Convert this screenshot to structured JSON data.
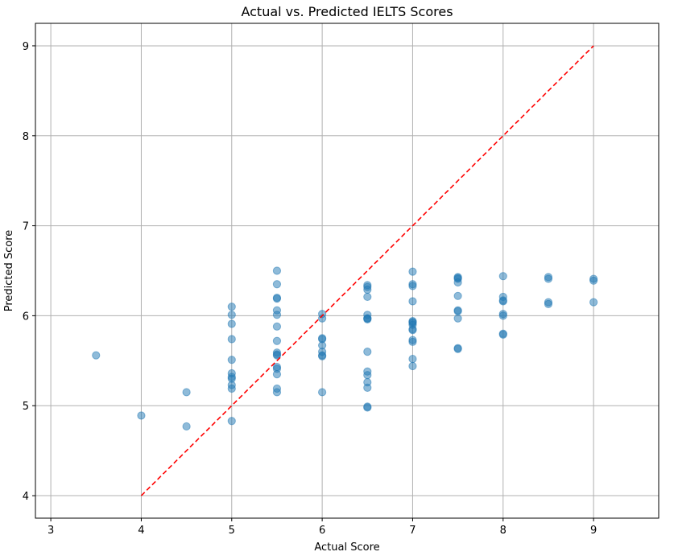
{
  "chart_data": {
    "type": "scatter",
    "title": "Actual vs. Predicted IELTS Scores",
    "xlabel": "Actual Score",
    "ylabel": "Predicted Score",
    "xlim": [
      2.83,
      9.72
    ],
    "ylim": [
      3.75,
      9.25
    ],
    "xticks": [
      3,
      4,
      5,
      6,
      7,
      8,
      9
    ],
    "yticks": [
      4,
      5,
      6,
      7,
      8,
      9
    ],
    "grid": true,
    "colors": {
      "points": "#1f77b4",
      "reference_line": "#ff0000",
      "grid": "#b0b0b0"
    },
    "series": [
      {
        "type": "scatter",
        "x": [
          3.5,
          4.0,
          4.5,
          4.5,
          5.0,
          5.0,
          5.0,
          5.0,
          5.0,
          5.0,
          5.0,
          5.0,
          5.0,
          5.0,
          5.0,
          5.5,
          5.5,
          5.5,
          5.5,
          5.5,
          5.5,
          5.5,
          5.5,
          5.5,
          5.5,
          5.5,
          5.5,
          5.5,
          5.5,
          5.5,
          5.5,
          6.0,
          6.0,
          6.0,
          6.0,
          6.0,
          6.0,
          6.0,
          6.0,
          6.0,
          6.5,
          6.5,
          6.5,
          6.5,
          6.5,
          6.5,
          6.5,
          6.5,
          6.5,
          6.5,
          6.5,
          6.5,
          6.5,
          6.5,
          6.5,
          7.0,
          7.0,
          7.0,
          7.0,
          7.0,
          7.0,
          7.0,
          7.0,
          7.0,
          7.0,
          7.0,
          7.0,
          7.0,
          7.0,
          7.5,
          7.5,
          7.5,
          7.5,
          7.5,
          7.5,
          7.5,
          7.5,
          7.5,
          7.5,
          8.0,
          8.0,
          8.0,
          8.0,
          8.0,
          8.0,
          8.0,
          8.0,
          8.5,
          8.5,
          8.5,
          8.5,
          9.0,
          9.0,
          9.0
        ],
        "y": [
          5.56,
          4.89,
          5.15,
          4.77,
          6.1,
          6.01,
          5.91,
          5.74,
          5.51,
          5.36,
          5.32,
          5.3,
          5.23,
          5.19,
          4.83,
          6.5,
          6.35,
          6.2,
          6.19,
          6.06,
          6.01,
          5.88,
          5.72,
          5.59,
          5.57,
          5.56,
          5.43,
          5.41,
          5.35,
          5.19,
          5.15,
          6.02,
          5.97,
          5.75,
          5.74,
          5.67,
          5.6,
          5.56,
          5.55,
          5.15,
          6.34,
          6.32,
          6.29,
          6.21,
          6.01,
          5.97,
          5.96,
          5.6,
          5.38,
          5.34,
          5.26,
          5.2,
          4.99,
          4.98,
          5.97,
          6.49,
          6.35,
          6.33,
          6.16,
          5.94,
          5.92,
          5.9,
          5.85,
          5.84,
          5.73,
          5.71,
          5.52,
          5.44,
          5.93,
          6.43,
          6.42,
          6.41,
          6.37,
          6.22,
          6.06,
          6.05,
          5.97,
          5.64,
          5.63,
          6.44,
          6.21,
          6.17,
          6.16,
          6.02,
          6.0,
          5.8,
          5.79,
          6.43,
          6.41,
          6.15,
          6.13,
          6.41,
          6.39,
          6.15
        ]
      }
    ],
    "reference_line": {
      "x": [
        4,
        9
      ],
      "y": [
        4,
        9
      ],
      "style": "dashed"
    }
  }
}
